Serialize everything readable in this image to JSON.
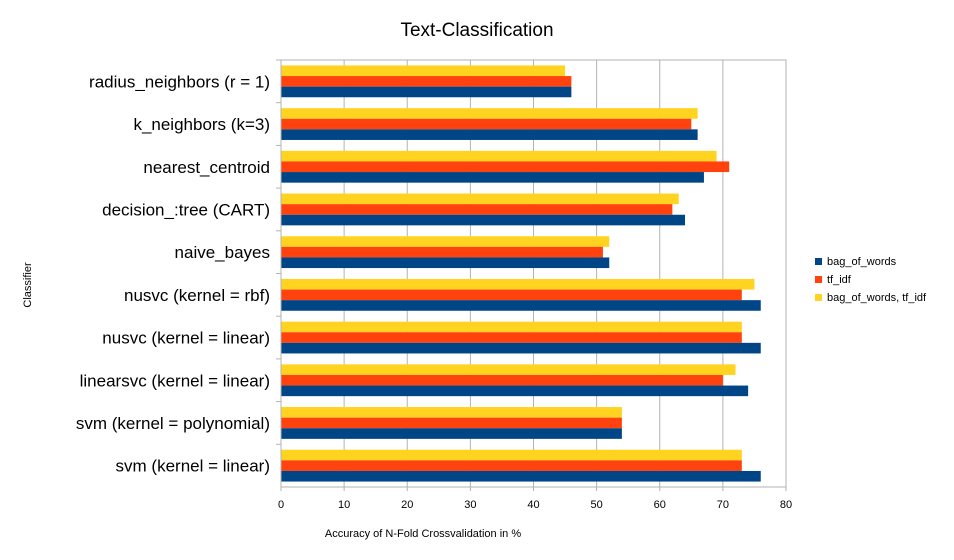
{
  "chart_data": {
    "type": "bar",
    "orientation": "horizontal",
    "title": "Text-Classification",
    "xlabel": "Accuracy of N-Fold Crossvalidation in %",
    "ylabel": "Classifier",
    "xlim": [
      0,
      80
    ],
    "xticks": [
      0,
      10,
      20,
      30,
      40,
      50,
      60,
      70,
      80
    ],
    "grid": "vertical",
    "legend_position": "right",
    "categories": [
      "radius_neighbors (r = 1)",
      "k_neighbors (k=3)",
      "nearest_centroid",
      "decision_:tree (CART)",
      "naive_bayes",
      "nusvc (kernel = rbf)",
      "nusvc (kernel = linear)",
      "linearsvc (kernel = linear)",
      "svm (kernel = polynomial)",
      "svm (kernel = linear)"
    ],
    "series": [
      {
        "name": "bag_of_words",
        "color": "#004586",
        "values": [
          46,
          66,
          67,
          64,
          52,
          76,
          76,
          74,
          54,
          76
        ]
      },
      {
        "name": "tf_idf",
        "color": "#ff420e",
        "values": [
          46,
          65,
          71,
          62,
          51,
          73,
          73,
          70,
          54,
          73
        ]
      },
      {
        "name": "bag_of_words, tf_idf",
        "color": "#ffd320",
        "values": [
          45,
          66,
          69,
          63,
          52,
          75,
          73,
          72,
          54,
          73
        ]
      }
    ]
  }
}
